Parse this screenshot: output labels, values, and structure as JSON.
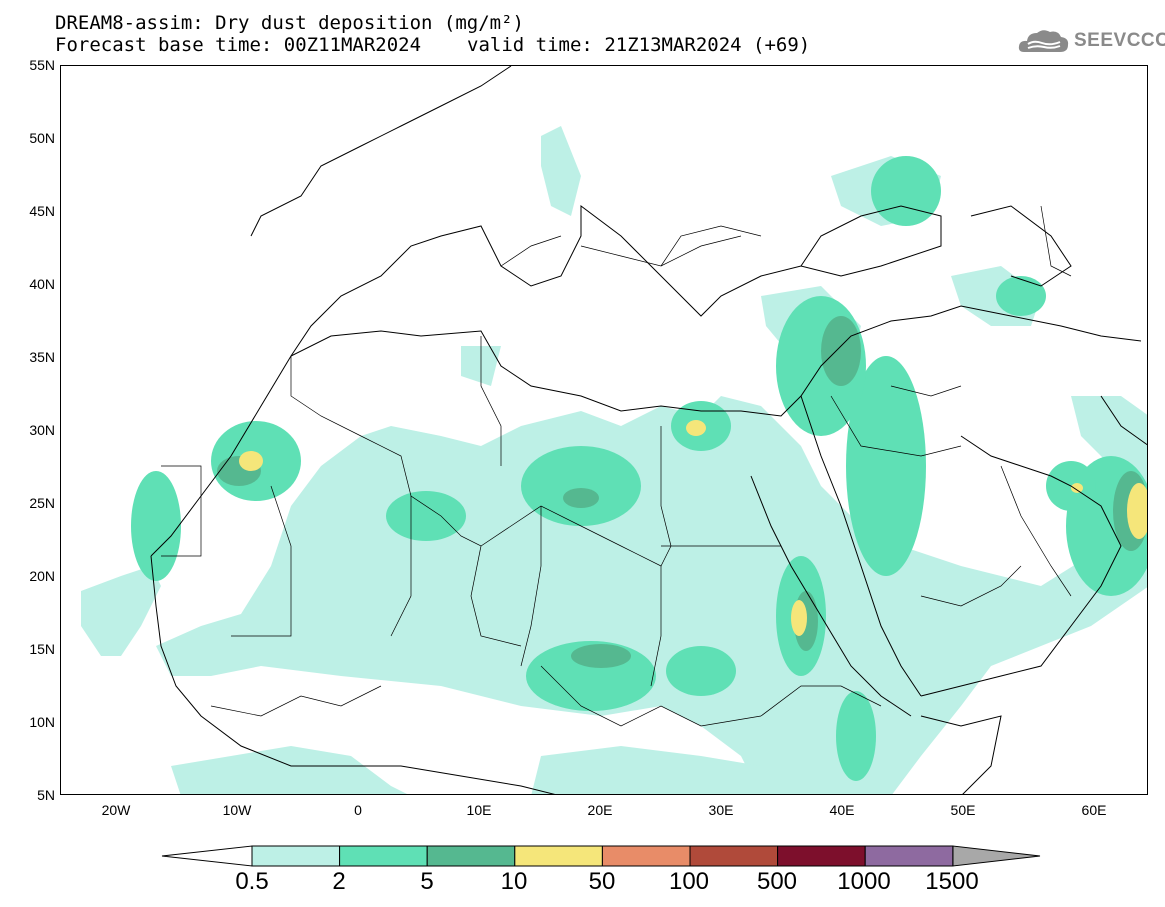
{
  "header": {
    "title_line1": "DREAM8-assim: Dry dust deposition (mg/m²)",
    "title_line2_left": "Forecast base time: 00Z11MAR2024",
    "title_line2_right": "valid time: 21Z13MAR2024 (+69)",
    "logo_text": "SEEVCCC",
    "logo_icon": "cloud-icon"
  },
  "map": {
    "projection": "lat-lon",
    "lon_range": [
      -25,
      65
    ],
    "lat_range": [
      5,
      55
    ],
    "lat_labels": [
      "55N",
      "50N",
      "45N",
      "40N",
      "35N",
      "30N",
      "25N",
      "20N",
      "15N",
      "10N",
      "5N"
    ],
    "lon_labels": [
      "20W",
      "10W",
      "0",
      "10E",
      "20E",
      "30E",
      "40E",
      "50E",
      "60E"
    ]
  },
  "colorbar": {
    "labels": [
      "0.5",
      "2",
      "5",
      "10",
      "50",
      "100",
      "500",
      "1000",
      "1500"
    ],
    "colors": [
      "#bdf0e6",
      "#5fe0b5",
      "#55b890",
      "#f5e67a",
      "#e88c68",
      "#b04a3a",
      "#7d0f2c",
      "#8e6aa0",
      "#a8a8a8"
    ],
    "under_color": "#ffffff",
    "over_color": "#a8a8a8"
  }
}
